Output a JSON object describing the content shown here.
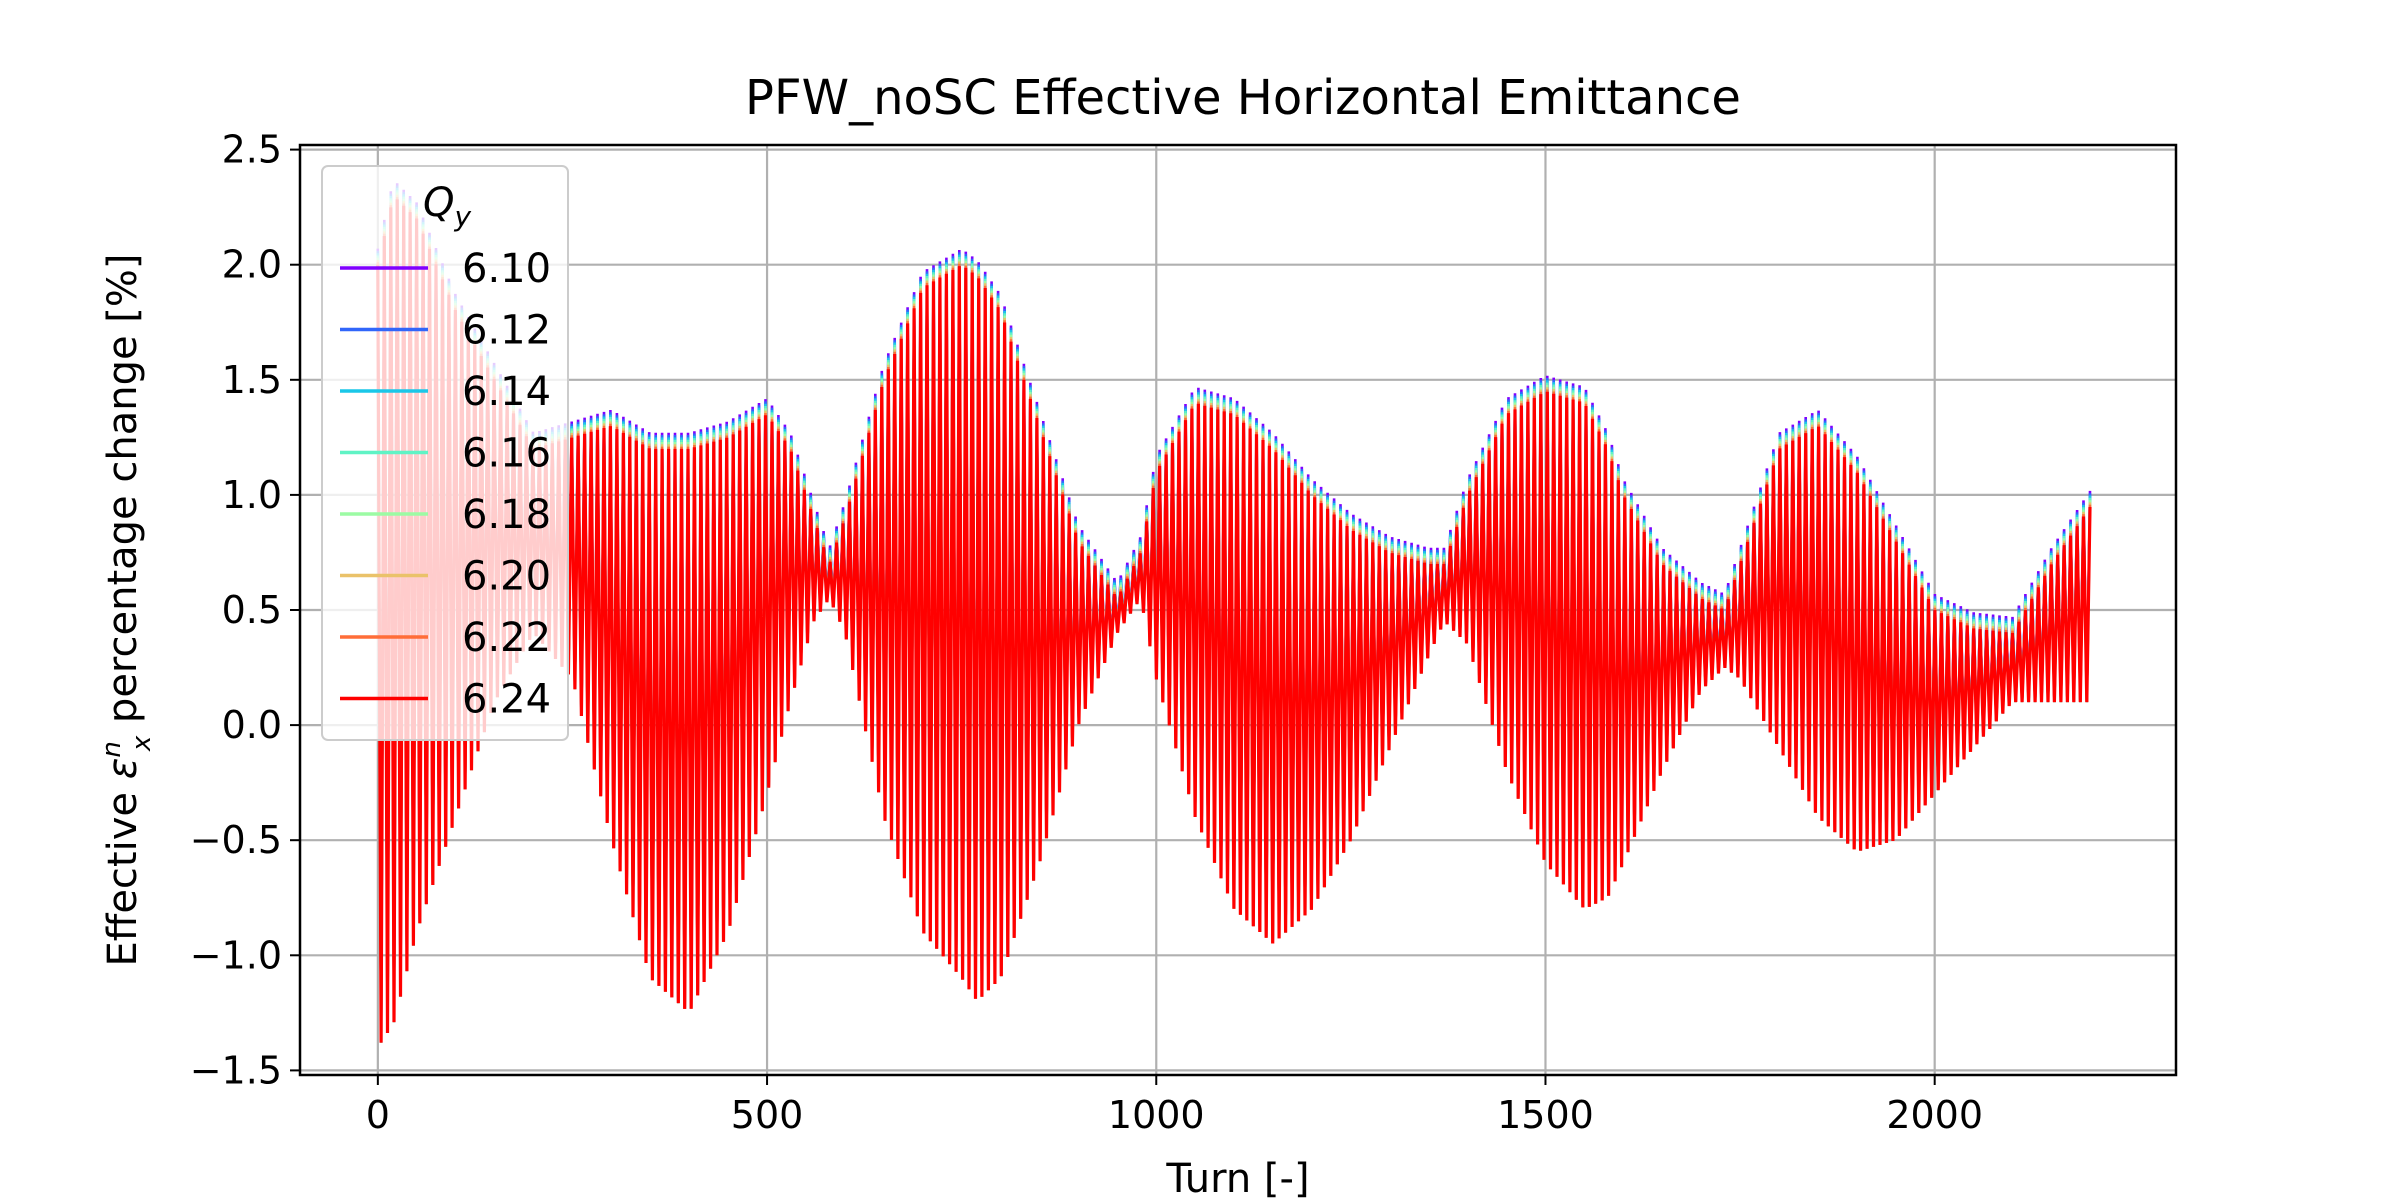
{
  "chart_data": {
    "type": "line",
    "title": "PFW_noSC Effective Horizontal Emittance",
    "xlabel": "Turn [-]",
    "ylabel": {
      "prefix": "Effective ",
      "symbol": "ε",
      "superscript": "n",
      "subscript": "x",
      "suffix": " percentage change [%]"
    },
    "xlim": [
      -100,
      2310
    ],
    "ylim": [
      -1.52,
      2.52
    ],
    "x_ticks": [
      0,
      500,
      1000,
      1500,
      2000
    ],
    "x_tick_labels": [
      "0",
      "500",
      "1000",
      "1500",
      "2000"
    ],
    "y_ticks": [
      -1.5,
      -1.0,
      -0.5,
      0.0,
      0.5,
      1.0,
      1.5,
      2.0,
      2.5
    ],
    "y_tick_labels": [
      "−1.5",
      "−1.0",
      "−0.5",
      "0.0",
      "0.5",
      "1.0",
      "1.5",
      "2.0",
      "2.5"
    ],
    "grid": true,
    "legend": {
      "title": "Q",
      "title_subscript": "y",
      "placement": "upper-left"
    },
    "x_range": [
      0,
      2200
    ],
    "oscillation_period_turns": 8.3,
    "envelope_turns": [
      0,
      20,
      50,
      100,
      150,
      200,
      250,
      300,
      350,
      400,
      450,
      500,
      530,
      560,
      580,
      600,
      650,
      700,
      750,
      770,
      800,
      850,
      900,
      950,
      980,
      1000,
      1050,
      1100,
      1150,
      1200,
      1250,
      1300,
      1350,
      1370,
      1400,
      1450,
      1500,
      1550,
      1580,
      1600,
      1650,
      1700,
      1730,
      1750,
      1800,
      1850,
      1900,
      1950,
      2000,
      2050,
      2100,
      2150,
      2200
    ],
    "series": [
      {
        "name": "6.10",
        "color": "#8000ff",
        "offset": 0.07,
        "upper": [
          2.0,
          2.3,
          2.2,
          1.8,
          1.5,
          1.2,
          1.25,
          1.3,
          1.2,
          1.2,
          1.25,
          1.35,
          1.2,
          0.9,
          0.7,
          0.9,
          1.5,
          1.9,
          2.0,
          1.95,
          1.8,
          1.3,
          0.8,
          0.55,
          0.75,
          1.1,
          1.4,
          1.35,
          1.2,
          1.0,
          0.85,
          0.75,
          0.7,
          0.7,
          1.0,
          1.35,
          1.45,
          1.4,
          1.2,
          1.0,
          0.7,
          0.55,
          0.5,
          0.7,
          1.2,
          1.3,
          1.1,
          0.8,
          0.5,
          0.42,
          0.4,
          0.7,
          0.95
        ],
        "lower": [
          -1.4,
          -1.3,
          -0.9,
          -0.4,
          0.1,
          0.4,
          0.2,
          -0.5,
          -1.1,
          -1.25,
          -0.9,
          -0.3,
          0.1,
          0.45,
          0.55,
          0.4,
          -0.4,
          -0.9,
          -1.1,
          -1.2,
          -1.1,
          -0.6,
          0.0,
          0.4,
          0.55,
          0.2,
          -0.4,
          -0.8,
          -0.95,
          -0.8,
          -0.5,
          -0.1,
          0.3,
          0.45,
          0.35,
          -0.2,
          -0.6,
          -0.8,
          -0.75,
          -0.6,
          -0.2,
          0.15,
          0.25,
          0.2,
          -0.1,
          -0.4,
          -0.55,
          -0.5,
          -0.3,
          -0.1,
          0.1,
          0.1,
          0.1
        ]
      },
      {
        "name": "6.12",
        "color": "#3166fa",
        "offset": 0.06,
        "upper": [
          2.0,
          2.3,
          2.2,
          1.8,
          1.5,
          1.2,
          1.25,
          1.3,
          1.2,
          1.2,
          1.25,
          1.35,
          1.2,
          0.9,
          0.7,
          0.9,
          1.5,
          1.9,
          2.0,
          1.95,
          1.8,
          1.3,
          0.8,
          0.55,
          0.75,
          1.1,
          1.4,
          1.35,
          1.2,
          1.0,
          0.85,
          0.75,
          0.7,
          0.7,
          1.0,
          1.35,
          1.45,
          1.4,
          1.2,
          1.0,
          0.7,
          0.55,
          0.5,
          0.7,
          1.2,
          1.3,
          1.1,
          0.8,
          0.5,
          0.42,
          0.4,
          0.7,
          0.95
        ],
        "lower": [
          -1.4,
          -1.3,
          -0.9,
          -0.4,
          0.1,
          0.4,
          0.2,
          -0.5,
          -1.1,
          -1.25,
          -0.9,
          -0.3,
          0.1,
          0.45,
          0.55,
          0.4,
          -0.4,
          -0.9,
          -1.1,
          -1.2,
          -1.1,
          -0.6,
          0.0,
          0.4,
          0.55,
          0.2,
          -0.4,
          -0.8,
          -0.95,
          -0.8,
          -0.5,
          -0.1,
          0.3,
          0.45,
          0.35,
          -0.2,
          -0.6,
          -0.8,
          -0.75,
          -0.6,
          -0.2,
          0.15,
          0.25,
          0.2,
          -0.1,
          -0.4,
          -0.55,
          -0.5,
          -0.3,
          -0.1,
          0.1,
          0.1,
          0.1
        ]
      },
      {
        "name": "6.14",
        "color": "#1ac7e8",
        "offset": 0.05,
        "upper": [
          2.0,
          2.3,
          2.2,
          1.8,
          1.5,
          1.2,
          1.25,
          1.3,
          1.2,
          1.2,
          1.25,
          1.35,
          1.2,
          0.9,
          0.7,
          0.9,
          1.5,
          1.9,
          2.0,
          1.95,
          1.8,
          1.3,
          0.8,
          0.55,
          0.75,
          1.1,
          1.4,
          1.35,
          1.2,
          1.0,
          0.85,
          0.75,
          0.7,
          0.7,
          1.0,
          1.35,
          1.45,
          1.4,
          1.2,
          1.0,
          0.7,
          0.55,
          0.5,
          0.7,
          1.2,
          1.3,
          1.1,
          0.8,
          0.5,
          0.42,
          0.4,
          0.7,
          0.95
        ],
        "lower": [
          -1.4,
          -1.3,
          -0.9,
          -0.4,
          0.1,
          0.4,
          0.2,
          -0.5,
          -1.1,
          -1.25,
          -0.9,
          -0.3,
          0.1,
          0.45,
          0.55,
          0.4,
          -0.4,
          -0.9,
          -1.1,
          -1.2,
          -1.1,
          -0.6,
          0.0,
          0.4,
          0.55,
          0.2,
          -0.4,
          -0.8,
          -0.95,
          -0.8,
          -0.5,
          -0.1,
          0.3,
          0.45,
          0.35,
          -0.2,
          -0.6,
          -0.8,
          -0.75,
          -0.6,
          -0.2,
          0.15,
          0.25,
          0.2,
          -0.1,
          -0.4,
          -0.55,
          -0.5,
          -0.3,
          -0.1,
          0.1,
          0.1,
          0.1
        ]
      },
      {
        "name": "6.16",
        "color": "#60f3c5",
        "offset": 0.04,
        "upper": [
          2.0,
          2.3,
          2.2,
          1.8,
          1.5,
          1.2,
          1.25,
          1.3,
          1.2,
          1.2,
          1.25,
          1.35,
          1.2,
          0.9,
          0.7,
          0.9,
          1.5,
          1.9,
          2.0,
          1.95,
          1.8,
          1.3,
          0.8,
          0.55,
          0.75,
          1.1,
          1.4,
          1.35,
          1.2,
          1.0,
          0.85,
          0.75,
          0.7,
          0.7,
          1.0,
          1.35,
          1.45,
          1.4,
          1.2,
          1.0,
          0.7,
          0.55,
          0.5,
          0.7,
          1.2,
          1.3,
          1.1,
          0.8,
          0.5,
          0.42,
          0.4,
          0.7,
          0.95
        ],
        "lower": [
          -1.4,
          -1.3,
          -0.9,
          -0.4,
          0.1,
          0.4,
          0.2,
          -0.5,
          -1.1,
          -1.25,
          -0.9,
          -0.3,
          0.1,
          0.45,
          0.55,
          0.4,
          -0.4,
          -0.9,
          -1.1,
          -1.2,
          -1.1,
          -0.6,
          0.0,
          0.4,
          0.55,
          0.2,
          -0.4,
          -0.8,
          -0.95,
          -0.8,
          -0.5,
          -0.1,
          0.3,
          0.45,
          0.35,
          -0.2,
          -0.6,
          -0.8,
          -0.75,
          -0.6,
          -0.2,
          0.15,
          0.25,
          0.2,
          -0.1,
          -0.4,
          -0.55,
          -0.5,
          -0.3,
          -0.1,
          0.1,
          0.1,
          0.1
        ]
      },
      {
        "name": "6.18",
        "color": "#9cfba4",
        "offset": 0.03,
        "upper": [
          2.0,
          2.3,
          2.2,
          1.8,
          1.5,
          1.2,
          1.25,
          1.3,
          1.2,
          1.2,
          1.25,
          1.35,
          1.2,
          0.9,
          0.7,
          0.9,
          1.5,
          1.9,
          2.0,
          1.95,
          1.8,
          1.3,
          0.8,
          0.55,
          0.75,
          1.1,
          1.4,
          1.35,
          1.2,
          1.0,
          0.85,
          0.75,
          0.7,
          0.7,
          1.0,
          1.35,
          1.45,
          1.4,
          1.2,
          1.0,
          0.7,
          0.55,
          0.5,
          0.7,
          1.2,
          1.3,
          1.1,
          0.8,
          0.5,
          0.42,
          0.4,
          0.7,
          0.95
        ],
        "lower": [
          -1.4,
          -1.3,
          -0.9,
          -0.4,
          0.1,
          0.4,
          0.2,
          -0.5,
          -1.1,
          -1.25,
          -0.9,
          -0.3,
          0.1,
          0.45,
          0.55,
          0.4,
          -0.4,
          -0.9,
          -1.1,
          -1.2,
          -1.1,
          -0.6,
          0.0,
          0.4,
          0.55,
          0.2,
          -0.4,
          -0.8,
          -0.95,
          -0.8,
          -0.5,
          -0.1,
          0.3,
          0.45,
          0.35,
          -0.2,
          -0.6,
          -0.8,
          -0.75,
          -0.6,
          -0.2,
          0.15,
          0.25,
          0.2,
          -0.1,
          -0.4,
          -0.55,
          -0.5,
          -0.3,
          -0.1,
          0.1,
          0.1,
          0.1
        ]
      },
      {
        "name": "6.20",
        "color": "#eac26a",
        "offset": 0.02,
        "upper": [
          2.0,
          2.3,
          2.2,
          1.8,
          1.5,
          1.2,
          1.25,
          1.3,
          1.2,
          1.2,
          1.25,
          1.35,
          1.2,
          0.9,
          0.7,
          0.9,
          1.5,
          1.9,
          2.0,
          1.95,
          1.8,
          1.3,
          0.8,
          0.55,
          0.75,
          1.1,
          1.4,
          1.35,
          1.2,
          1.0,
          0.85,
          0.75,
          0.7,
          0.7,
          1.0,
          1.35,
          1.45,
          1.4,
          1.2,
          1.0,
          0.7,
          0.55,
          0.5,
          0.7,
          1.2,
          1.3,
          1.1,
          0.8,
          0.5,
          0.42,
          0.4,
          0.7,
          0.95
        ],
        "lower": [
          -1.4,
          -1.3,
          -0.9,
          -0.4,
          0.1,
          0.4,
          0.2,
          -0.5,
          -1.1,
          -1.25,
          -0.9,
          -0.3,
          0.1,
          0.45,
          0.55,
          0.4,
          -0.4,
          -0.9,
          -1.1,
          -1.2,
          -1.1,
          -0.6,
          0.0,
          0.4,
          0.55,
          0.2,
          -0.4,
          -0.8,
          -0.95,
          -0.8,
          -0.5,
          -0.1,
          0.3,
          0.45,
          0.35,
          -0.2,
          -0.6,
          -0.8,
          -0.75,
          -0.6,
          -0.2,
          0.15,
          0.25,
          0.2,
          -0.1,
          -0.4,
          -0.55,
          -0.5,
          -0.3,
          -0.1,
          0.1,
          0.1,
          0.1
        ]
      },
      {
        "name": "6.22",
        "color": "#ff6d38",
        "offset": 0.01,
        "upper": [
          2.0,
          2.3,
          2.2,
          1.8,
          1.5,
          1.2,
          1.25,
          1.3,
          1.2,
          1.2,
          1.25,
          1.35,
          1.2,
          0.9,
          0.7,
          0.9,
          1.5,
          1.9,
          2.0,
          1.95,
          1.8,
          1.3,
          0.8,
          0.55,
          0.75,
          1.1,
          1.4,
          1.35,
          1.2,
          1.0,
          0.85,
          0.75,
          0.7,
          0.7,
          1.0,
          1.35,
          1.45,
          1.4,
          1.2,
          1.0,
          0.7,
          0.55,
          0.5,
          0.7,
          1.2,
          1.3,
          1.1,
          0.8,
          0.5,
          0.42,
          0.4,
          0.7,
          0.95
        ],
        "lower": [
          -1.4,
          -1.3,
          -0.9,
          -0.4,
          0.1,
          0.4,
          0.2,
          -0.5,
          -1.1,
          -1.25,
          -0.9,
          -0.3,
          0.1,
          0.45,
          0.55,
          0.4,
          -0.4,
          -0.9,
          -1.1,
          -1.2,
          -1.1,
          -0.6,
          0.0,
          0.4,
          0.55,
          0.2,
          -0.4,
          -0.8,
          -0.95,
          -0.8,
          -0.5,
          -0.1,
          0.3,
          0.45,
          0.35,
          -0.2,
          -0.6,
          -0.8,
          -0.75,
          -0.6,
          -0.2,
          0.15,
          0.25,
          0.2,
          -0.1,
          -0.4,
          -0.55,
          -0.5,
          -0.3,
          -0.1,
          0.1,
          0.1,
          0.1
        ]
      },
      {
        "name": "6.24",
        "color": "#ff0000",
        "offset": 0.0,
        "upper": [
          2.0,
          2.3,
          2.2,
          1.8,
          1.5,
          1.2,
          1.25,
          1.3,
          1.2,
          1.2,
          1.25,
          1.35,
          1.2,
          0.9,
          0.7,
          0.9,
          1.5,
          1.9,
          2.0,
          1.95,
          1.8,
          1.3,
          0.8,
          0.55,
          0.75,
          1.1,
          1.4,
          1.35,
          1.2,
          1.0,
          0.85,
          0.75,
          0.7,
          0.7,
          1.0,
          1.35,
          1.45,
          1.4,
          1.2,
          1.0,
          0.7,
          0.55,
          0.5,
          0.7,
          1.2,
          1.3,
          1.1,
          0.8,
          0.5,
          0.42,
          0.4,
          0.7,
          0.95
        ],
        "lower": [
          -1.4,
          -1.3,
          -0.9,
          -0.4,
          0.1,
          0.4,
          0.2,
          -0.5,
          -1.1,
          -1.25,
          -0.9,
          -0.3,
          0.1,
          0.45,
          0.55,
          0.4,
          -0.4,
          -0.9,
          -1.1,
          -1.2,
          -1.1,
          -0.6,
          0.0,
          0.4,
          0.55,
          0.2,
          -0.4,
          -0.8,
          -0.95,
          -0.8,
          -0.5,
          -0.1,
          0.3,
          0.45,
          0.35,
          -0.2,
          -0.6,
          -0.8,
          -0.75,
          -0.6,
          -0.2,
          0.15,
          0.25,
          0.2,
          -0.1,
          -0.4,
          -0.55,
          -0.5,
          -0.3,
          -0.1,
          0.1,
          0.1,
          0.1
        ]
      }
    ]
  }
}
